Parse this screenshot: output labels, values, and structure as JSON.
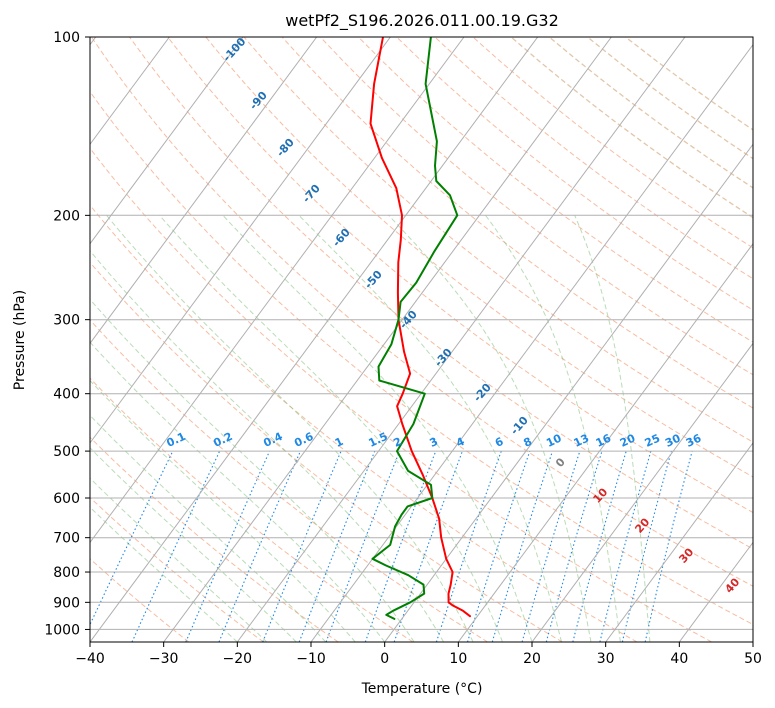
{
  "chart_data": {
    "type": "line",
    "title": "wetPf2_S196.2026.011.00.19.G32",
    "xlabel": "Temperature (°C)",
    "ylabel": "Pressure (hPa)",
    "xlim": [
      -40,
      50
    ],
    "ylim": [
      1050,
      100
    ],
    "y_scale": "log",
    "skew": true,
    "grid": true,
    "xticks": [
      -40,
      -30,
      -20,
      -10,
      0,
      10,
      20,
      30,
      40,
      50
    ],
    "yticks": [
      100,
      200,
      300,
      400,
      500,
      600,
      700,
      800,
      900,
      1000
    ],
    "series": [
      {
        "label": "temperature",
        "color": "#ff0000",
        "points": [
          [
            950,
            9
          ],
          [
            930,
            7.5
          ],
          [
            910,
            5.5
          ],
          [
            900,
            4.7
          ],
          [
            870,
            3.8
          ],
          [
            840,
            3.2
          ],
          [
            800,
            2.2
          ],
          [
            760,
            0.0
          ],
          [
            700,
            -2.8
          ],
          [
            650,
            -5.0
          ],
          [
            600,
            -8.0
          ],
          [
            550,
            -11.5
          ],
          [
            500,
            -15.5
          ],
          [
            450,
            -19.5
          ],
          [
            420,
            -22.0
          ],
          [
            400,
            -22.5
          ],
          [
            370,
            -23.5
          ],
          [
            340,
            -26.5
          ],
          [
            300,
            -30.5
          ],
          [
            270,
            -33.3
          ],
          [
            240,
            -36.3
          ],
          [
            220,
            -38.2
          ],
          [
            200,
            -40.5
          ],
          [
            180,
            -44.0
          ],
          [
            160,
            -49.0
          ],
          [
            140,
            -54.0
          ],
          [
            120,
            -57.5
          ],
          [
            100,
            -61.0
          ]
        ]
      },
      {
        "label": "dewpoint",
        "color": "#008000",
        "points": [
          [
            960,
            -1
          ],
          [
            945,
            -2.5
          ],
          [
            930,
            -2.0
          ],
          [
            900,
            -0.5
          ],
          [
            870,
            0.5
          ],
          [
            840,
            -0.5
          ],
          [
            810,
            -3.5
          ],
          [
            780,
            -7.5
          ],
          [
            760,
            -10.0
          ],
          [
            720,
            -9.0
          ],
          [
            670,
            -10.2
          ],
          [
            640,
            -10.5
          ],
          [
            620,
            -10.5
          ],
          [
            600,
            -8.0
          ],
          [
            570,
            -9.5
          ],
          [
            540,
            -14.0
          ],
          [
            500,
            -17.5
          ],
          [
            450,
            -18.0
          ],
          [
            400,
            -19.5
          ],
          [
            380,
            -27.0
          ],
          [
            360,
            -28.5
          ],
          [
            330,
            -29.0
          ],
          [
            300,
            -30.5
          ],
          [
            280,
            -32.0
          ],
          [
            260,
            -31.8
          ],
          [
            230,
            -32.5
          ],
          [
            200,
            -33.0
          ],
          [
            185,
            -36.0
          ],
          [
            175,
            -39.3
          ],
          [
            165,
            -41.0
          ],
          [
            150,
            -43.2
          ],
          [
            120,
            -50.5
          ],
          [
            100,
            -54.5
          ]
        ]
      }
    ],
    "dry_adiabat_labels": [
      "-100",
      "-90",
      "-80",
      "-70",
      "-60",
      "-50",
      "-40",
      "-30",
      "-20",
      "-10",
      "0",
      "10",
      "20",
      "30",
      "40"
    ],
    "mixing_ratio_labels": [
      "0.1",
      "0.2",
      "0.4",
      "0.6",
      "1",
      "1.5",
      "2",
      "3",
      "4",
      "6",
      "8",
      "10",
      "13",
      "16",
      "20",
      "25",
      "30",
      "36"
    ]
  },
  "colors": {
    "temperature": "#ff0000",
    "dewpoint": "#008000",
    "isotherm_grid": "#b0b0b0",
    "dry_adiabat": "#f4a582",
    "moist_adiabat": "#7fbf7b",
    "mixing_ratio": "#1e88e5",
    "dry_label_low": "#1f6fb4",
    "dry_label_high": "#d62728"
  }
}
